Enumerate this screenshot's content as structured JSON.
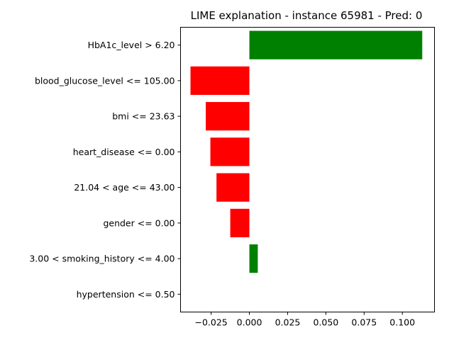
{
  "chart_data": {
    "type": "bar",
    "orientation": "horizontal",
    "title": "LIME explanation - instance 65981 - Pred: 0",
    "xlabel": "",
    "ylabel": "",
    "categories": [
      "HbA1c_level > 6.20",
      "blood_glucose_level <= 105.00",
      "bmi <= 23.63",
      "heart_disease <= 0.00",
      "21.04 < age <= 43.00",
      "gender <= 0.00",
      "3.00 < smoking_history <= 4.00",
      "hypertension <= 0.50"
    ],
    "values": [
      0.113,
      -0.0385,
      -0.0285,
      -0.0255,
      -0.0215,
      -0.0125,
      0.0055,
      0.0
    ],
    "xlim": [
      -0.045,
      0.121
    ],
    "xticks": [
      -0.025,
      0.0,
      0.025,
      0.05,
      0.075,
      0.1
    ],
    "xtick_labels": [
      "−0.025",
      "0.000",
      "0.025",
      "0.050",
      "0.075",
      "0.100"
    ],
    "grid": false,
    "colors": {
      "positive": "#008000",
      "negative": "#ff0000"
    }
  }
}
